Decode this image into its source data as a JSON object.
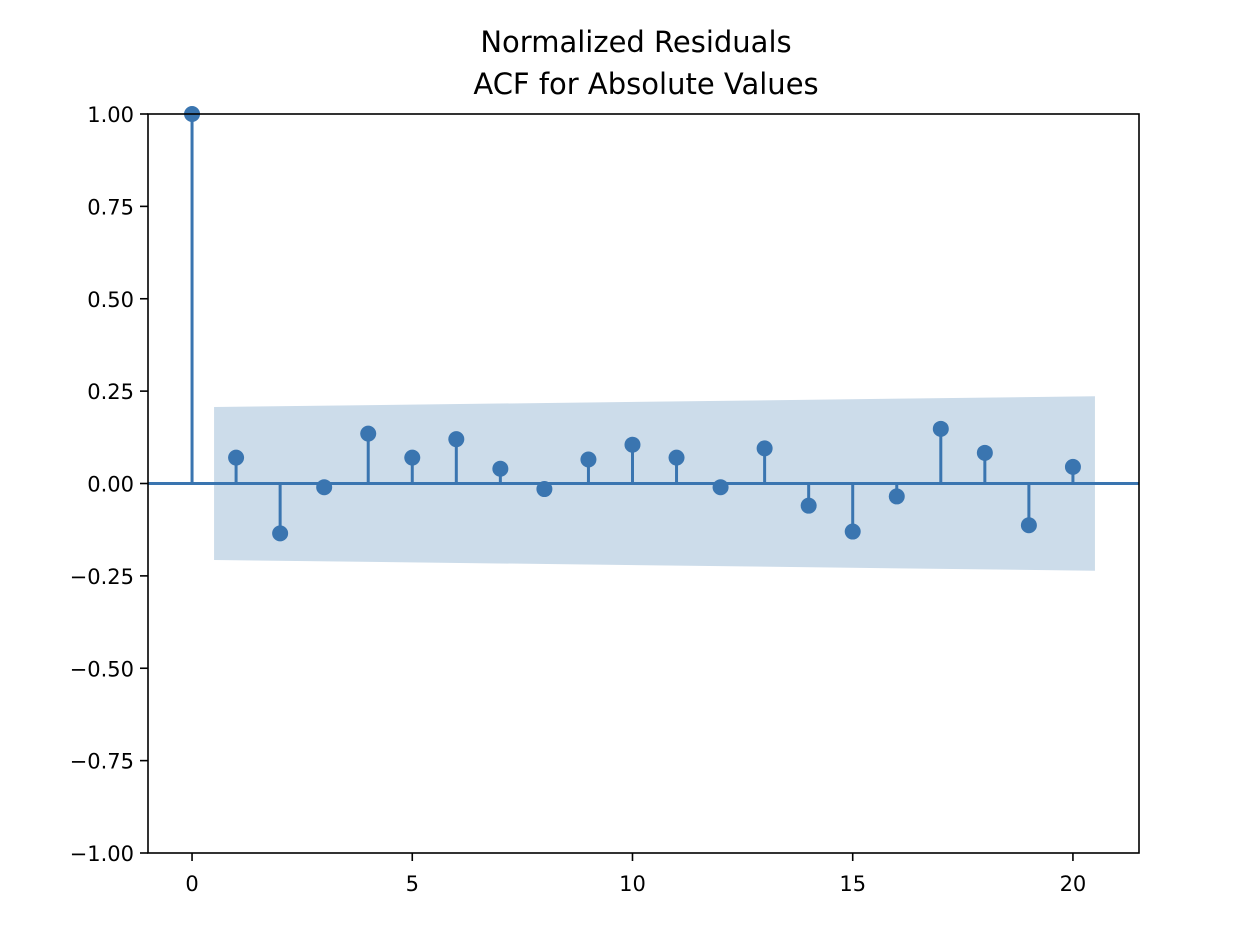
{
  "chart_data": {
    "type": "stem",
    "title_line1": "Normalized Residuals",
    "title_line2": "ACF for Absolute Values",
    "xlabel": "",
    "ylabel": "",
    "xlim": [
      -1,
      21.5
    ],
    "ylim": [
      -1.0,
      1.0
    ],
    "x_ticks": [
      0,
      5,
      10,
      15,
      20
    ],
    "x_tick_labels": [
      "0",
      "5",
      "10",
      "15",
      "20"
    ],
    "y_ticks": [
      1.0,
      0.75,
      0.5,
      0.25,
      0.0,
      -0.25,
      -0.5,
      -0.75,
      -1.0
    ],
    "y_tick_labels": [
      "1.00",
      "0.75",
      "0.50",
      "0.25",
      "0.00",
      "−0.25",
      "−0.50",
      "−0.75",
      "−1.00"
    ],
    "grid": false,
    "lags": [
      0,
      1,
      2,
      3,
      4,
      5,
      6,
      7,
      8,
      9,
      10,
      11,
      12,
      13,
      14,
      15,
      16,
      17,
      18,
      19,
      20
    ],
    "acf": [
      1.0,
      0.07,
      -0.135,
      -0.01,
      0.135,
      0.07,
      0.12,
      0.04,
      -0.015,
      0.065,
      0.105,
      0.07,
      -0.01,
      0.095,
      -0.06,
      -0.13,
      -0.035,
      0.148,
      0.083,
      -0.113,
      0.045
    ],
    "confidence_band": {
      "x": [
        0.5,
        20.5
      ],
      "upper": [
        0.207,
        0.236
      ],
      "lower": [
        -0.207,
        -0.236
      ]
    },
    "colors": {
      "stem": "#3a75b0",
      "band": "#ccdcea",
      "axes": "#000000"
    }
  }
}
